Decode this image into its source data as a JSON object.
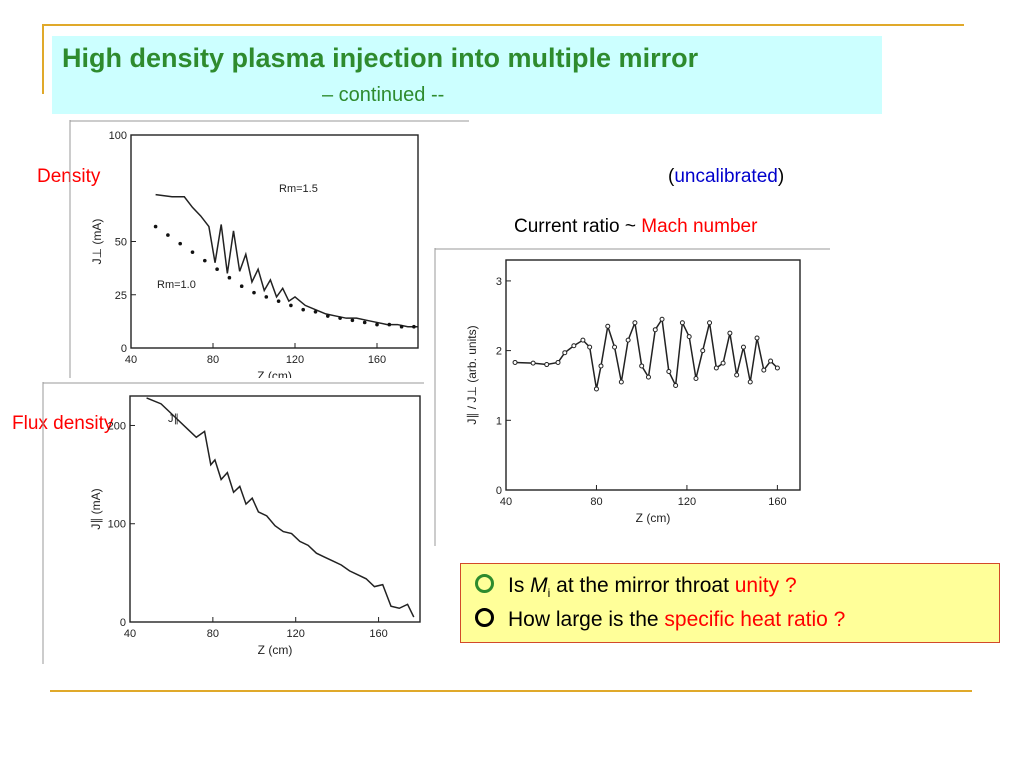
{
  "slide": {
    "title": "High density plasma injection into multiple mirror",
    "subtitle": "– continued --",
    "labels": {
      "density": "Density",
      "flux_density": "Flux density",
      "uncalibrated_open": "(",
      "uncalibrated": "uncalibrated",
      "uncalibrated_close": ")",
      "current_ratio_prefix": "Current ratio ~ ",
      "mach_number": "Mach number"
    },
    "questions": [
      {
        "pre": "Is ",
        "var": "M",
        "sub": "i",
        "mid": " at the mirror throat ",
        "highlight": "unity ?"
      },
      {
        "pre": "How large is the ",
        "highlight": "specific heat ratio ?"
      }
    ],
    "colors": {
      "title_green": "#2e8b2e",
      "title_bg": "#ccffff",
      "accent_red": "#ff0000",
      "link_blue": "#0000cc",
      "rule_gold": "#e0a92a",
      "box_yellow": "#ffff99"
    }
  },
  "chart_data": [
    {
      "type": "line",
      "title": "",
      "xlabel": "Z (cm)",
      "ylabel": "J⊥ (mA)",
      "xlim": [
        40,
        180
      ],
      "ylim": [
        0,
        100
      ],
      "xticks": [
        40,
        80,
        120,
        160
      ],
      "yticks": [
        0,
        25,
        50,
        100
      ],
      "annotations": [
        "Rm=1.5",
        "Rm=1.0"
      ],
      "series": [
        {
          "name": "Rm=1.5",
          "style": "line",
          "x": [
            52,
            60,
            66,
            70,
            74,
            78,
            81,
            84,
            87,
            90,
            93,
            96,
            99,
            102,
            105,
            108,
            111,
            114,
            117,
            120,
            125,
            130,
            135,
            140,
            145,
            150,
            155,
            160,
            165,
            170,
            175,
            180
          ],
          "y": [
            72,
            71,
            71,
            66,
            62,
            57,
            40,
            58,
            35,
            55,
            36,
            44,
            31,
            37,
            27,
            32,
            24,
            28,
            22,
            24,
            20,
            18,
            16,
            15,
            14,
            14,
            13,
            12,
            11,
            11,
            10,
            10
          ]
        },
        {
          "name": "Rm=1.0",
          "style": "dots",
          "x": [
            52,
            58,
            64,
            70,
            76,
            82,
            88,
            94,
            100,
            106,
            112,
            118,
            124,
            130,
            136,
            142,
            148,
            154,
            160,
            166,
            172,
            178
          ],
          "y": [
            57,
            53,
            49,
            45,
            41,
            37,
            33,
            29,
            26,
            24,
            22,
            20,
            18,
            17,
            15,
            14,
            13,
            12,
            11,
            11,
            10,
            10
          ]
        }
      ]
    },
    {
      "type": "line",
      "title": "",
      "xlabel": "Z (cm)",
      "ylabel": "J∥ (mA)",
      "xlim": [
        40,
        180
      ],
      "ylim": [
        0,
        230
      ],
      "xticks": [
        40,
        80,
        120,
        160
      ],
      "yticks": [
        0,
        100,
        200
      ],
      "annotations": [
        "J∥"
      ],
      "series": [
        {
          "name": "J∥",
          "style": "line",
          "x": [
            48,
            55,
            62,
            68,
            72,
            76,
            79,
            81,
            84,
            87,
            90,
            93,
            96,
            99,
            102,
            106,
            110,
            114,
            118,
            122,
            126,
            130,
            134,
            138,
            142,
            146,
            150,
            154,
            158,
            162,
            166,
            170,
            174,
            177
          ],
          "y": [
            228,
            222,
            208,
            196,
            188,
            194,
            160,
            165,
            145,
            152,
            132,
            138,
            120,
            126,
            112,
            108,
            98,
            92,
            90,
            82,
            78,
            70,
            66,
            62,
            58,
            52,
            48,
            44,
            36,
            38,
            16,
            14,
            18,
            5
          ]
        }
      ]
    },
    {
      "type": "line",
      "title": "",
      "xlabel": "Z (cm)",
      "ylabel": "J∥ / J⊥ (arb. units)",
      "xlim": [
        40,
        170
      ],
      "ylim": [
        0,
        3.3
      ],
      "xticks": [
        40,
        80,
        120,
        160
      ],
      "yticks": [
        0,
        1,
        2,
        3
      ],
      "series": [
        {
          "name": "",
          "style": "line-points",
          "x": [
            44,
            52,
            58,
            63,
            66,
            70,
            74,
            77,
            80,
            82,
            85,
            88,
            91,
            94,
            97,
            100,
            103,
            106,
            109,
            112,
            115,
            118,
            121,
            124,
            127,
            130,
            133,
            136,
            139,
            142,
            145,
            148,
            151,
            154,
            157,
            160
          ],
          "y": [
            1.83,
            1.82,
            1.8,
            1.83,
            1.97,
            2.07,
            2.15,
            2.05,
            1.45,
            1.78,
            2.35,
            2.05,
            1.55,
            2.15,
            2.4,
            1.78,
            1.62,
            2.3,
            2.45,
            1.7,
            1.5,
            2.4,
            2.2,
            1.6,
            2.0,
            2.4,
            1.75,
            1.82,
            2.25,
            1.65,
            2.05,
            1.55,
            2.18,
            1.72,
            1.85,
            1.75
          ]
        }
      ]
    }
  ]
}
